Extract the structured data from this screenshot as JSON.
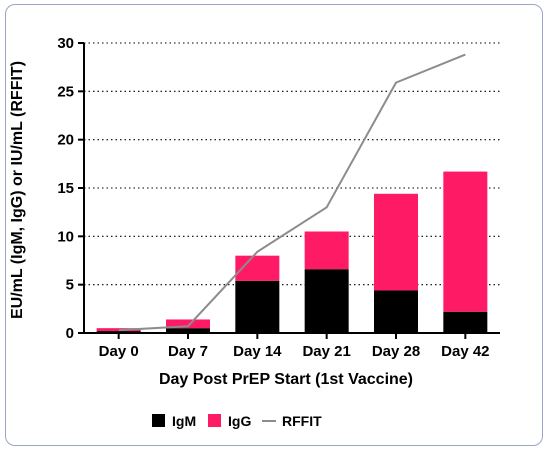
{
  "chart_data": {
    "type": "bar",
    "stacked": true,
    "categories": [
      "Day 0",
      "Day 7",
      "Day 14",
      "Day 21",
      "Day 28",
      "Day 42"
    ],
    "series": [
      {
        "name": "IgM",
        "kind": "bar",
        "color": "#000000",
        "values": [
          0.2,
          0.5,
          5.4,
          6.6,
          4.4,
          2.2
        ]
      },
      {
        "name": "IgG",
        "kind": "bar",
        "color": "#ff1a66",
        "values": [
          0.3,
          0.9,
          2.6,
          3.9,
          10.0,
          14.5
        ]
      },
      {
        "name": "RFFIT",
        "kind": "line",
        "color": "#8c8c8c",
        "values": [
          0.3,
          0.7,
          8.4,
          13.0,
          25.9,
          28.8
        ]
      }
    ],
    "xlabel": "Day Post PrEP Start (1st Vaccine)",
    "ylabel": "EU/mL (IgM, IgG) or IU/mL (RFFIT)",
    "ylim": [
      0,
      30
    ],
    "yticks": [
      0,
      5,
      10,
      15,
      20,
      25,
      30
    ],
    "grid": "horizontal dotted",
    "legend_position": "bottom"
  }
}
